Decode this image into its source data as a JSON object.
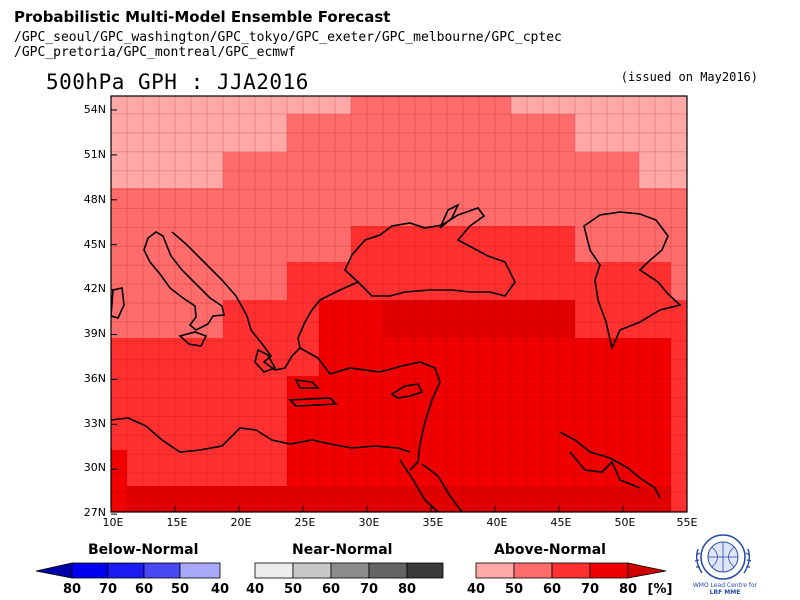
{
  "header": {
    "title": "Probabilistic Multi-Model Ensemble Forecast",
    "sources_line1": "/GPC_seoul/GPC_washington/GPC_tokyo/GPC_exeter/GPC_melbourne/GPC_cptec",
    "sources_line2": "/GPC_pretoria/GPC_montreal/GPC_ecmwf",
    "map_title": "500hPa GPH : JJA2016",
    "issued": "(issued on May2016)"
  },
  "axes": {
    "lat_labels": [
      "54N",
      "51N",
      "48N",
      "45N",
      "42N",
      "39N",
      "36N",
      "33N",
      "30N",
      "27N"
    ],
    "lon_labels": [
      "10E",
      "15E",
      "20E",
      "25E",
      "30E",
      "35E",
      "40E",
      "45E",
      "50E",
      "55E"
    ]
  },
  "legend": {
    "below": {
      "title": "Below-Normal",
      "ticks": [
        "80",
        "70",
        "60",
        "50",
        "40"
      ],
      "colors": [
        "#0000a8",
        "#0000ee",
        "#3c3cf5",
        "#7878f8",
        "#b0b0fc"
      ]
    },
    "near": {
      "title": "Near-Normal",
      "ticks": [
        "40",
        "50",
        "60",
        "70",
        "80"
      ],
      "colors": [
        "#ececec",
        "#c8c8c8",
        "#a0a0a0",
        "#707070",
        "#3c3c3c"
      ]
    },
    "above": {
      "title": "Above-Normal",
      "ticks": [
        "40",
        "50",
        "60",
        "70",
        "80"
      ],
      "colors": [
        "#ffa8a8",
        "#ff6c6c",
        "#ff3030",
        "#f00000",
        "#d00000"
      ],
      "unit": "[%]"
    }
  },
  "logo": {
    "caption_line1": "WMO Lead Centre for",
    "caption_line2": "LRF MME"
  }
}
